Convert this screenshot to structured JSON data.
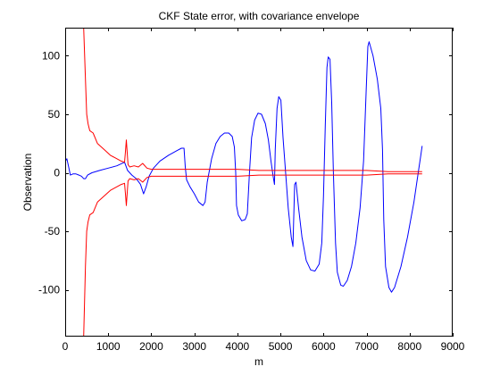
{
  "chart_data": {
    "type": "line",
    "title": "CKF State error, with covariance envelope",
    "xlabel": "m",
    "ylabel": "Observation",
    "xlim": [
      0,
      9000
    ],
    "ylim": [
      -140,
      124
    ],
    "xticks": [
      0,
      1000,
      2000,
      3000,
      4000,
      5000,
      6000,
      7000,
      8000,
      9000
    ],
    "yticks": [
      -100,
      -50,
      0,
      50,
      100
    ],
    "grid": false,
    "series": [
      {
        "color": "#0000ff",
        "points": [
          [
            0,
            10
          ],
          [
            40,
            12
          ],
          [
            80,
            5
          ],
          [
            120,
            -2
          ],
          [
            180,
            -1
          ],
          [
            250,
            -1
          ],
          [
            320,
            -2
          ],
          [
            380,
            -3
          ],
          [
            430,
            -5
          ],
          [
            470,
            -5
          ],
          [
            520,
            -2
          ],
          [
            620,
            0
          ],
          [
            800,
            2
          ],
          [
            1000,
            4
          ],
          [
            1200,
            6
          ],
          [
            1380,
            9
          ],
          [
            1450,
            2
          ],
          [
            1550,
            -2
          ],
          [
            1650,
            -5
          ],
          [
            1750,
            -10
          ],
          [
            1820,
            -18
          ],
          [
            1880,
            -12
          ],
          [
            1950,
            -3
          ],
          [
            2050,
            4
          ],
          [
            2200,
            10
          ],
          [
            2400,
            15
          ],
          [
            2600,
            19
          ],
          [
            2700,
            21
          ],
          [
            2760,
            21
          ],
          [
            2790,
            5
          ],
          [
            2820,
            -6
          ],
          [
            2900,
            -12
          ],
          [
            3000,
            -18
          ],
          [
            3100,
            -25
          ],
          [
            3200,
            -28
          ],
          [
            3250,
            -25
          ],
          [
            3300,
            -8
          ],
          [
            3400,
            12
          ],
          [
            3500,
            25
          ],
          [
            3600,
            31
          ],
          [
            3700,
            34
          ],
          [
            3800,
            34
          ],
          [
            3880,
            31
          ],
          [
            3930,
            22
          ],
          [
            3960,
            0
          ],
          [
            3980,
            -28
          ],
          [
            4020,
            -36
          ],
          [
            4100,
            -41
          ],
          [
            4180,
            -40
          ],
          [
            4230,
            -35
          ],
          [
            4280,
            0
          ],
          [
            4330,
            30
          ],
          [
            4400,
            45
          ],
          [
            4480,
            51
          ],
          [
            4560,
            50
          ],
          [
            4650,
            42
          ],
          [
            4720,
            28
          ],
          [
            4780,
            10
          ],
          [
            4830,
            -3
          ],
          [
            4860,
            -10
          ],
          [
            4880,
            20
          ],
          [
            4920,
            55
          ],
          [
            4960,
            65
          ],
          [
            5010,
            62
          ],
          [
            5060,
            30
          ],
          [
            5120,
            0
          ],
          [
            5180,
            -30
          ],
          [
            5250,
            -55
          ],
          [
            5290,
            -63
          ],
          [
            5330,
            -10
          ],
          [
            5360,
            -8
          ],
          [
            5420,
            -30
          ],
          [
            5500,
            -55
          ],
          [
            5600,
            -75
          ],
          [
            5700,
            -83
          ],
          [
            5800,
            -84
          ],
          [
            5900,
            -78
          ],
          [
            5960,
            -60
          ],
          [
            6000,
            -20
          ],
          [
            6040,
            40
          ],
          [
            6080,
            90
          ],
          [
            6110,
            99
          ],
          [
            6150,
            97
          ],
          [
            6190,
            60
          ],
          [
            6230,
            0
          ],
          [
            6280,
            -60
          ],
          [
            6320,
            -85
          ],
          [
            6400,
            -96
          ],
          [
            6460,
            -97
          ],
          [
            6550,
            -92
          ],
          [
            6650,
            -80
          ],
          [
            6750,
            -60
          ],
          [
            6850,
            -30
          ],
          [
            6930,
            10
          ],
          [
            6990,
            70
          ],
          [
            7030,
            108
          ],
          [
            7060,
            112
          ],
          [
            7150,
            100
          ],
          [
            7250,
            80
          ],
          [
            7330,
            55
          ],
          [
            7370,
            20
          ],
          [
            7400,
            -40
          ],
          [
            7440,
            -80
          ],
          [
            7520,
            -98
          ],
          [
            7580,
            -102
          ],
          [
            7650,
            -98
          ],
          [
            7800,
            -80
          ],
          [
            7950,
            -55
          ],
          [
            8100,
            -25
          ],
          [
            8200,
            0
          ],
          [
            8260,
            15
          ],
          [
            8290,
            23
          ]
        ]
      },
      {
        "color": "#ff0000",
        "points": [
          [
            430,
            124
          ],
          [
            470,
            80
          ],
          [
            500,
            50
          ],
          [
            530,
            42
          ],
          [
            570,
            36
          ],
          [
            650,
            34
          ],
          [
            750,
            25
          ],
          [
            900,
            20
          ],
          [
            1050,
            15
          ],
          [
            1200,
            12
          ],
          [
            1300,
            10
          ],
          [
            1380,
            9
          ],
          [
            1400,
            18
          ],
          [
            1420,
            28
          ],
          [
            1440,
            18
          ],
          [
            1460,
            7
          ],
          [
            1500,
            5
          ],
          [
            1600,
            6
          ],
          [
            1700,
            5
          ],
          [
            1800,
            8
          ],
          [
            1900,
            4
          ],
          [
            2000,
            3
          ],
          [
            2500,
            3
          ],
          [
            3000,
            3
          ],
          [
            3500,
            3
          ],
          [
            4000,
            3
          ],
          [
            4500,
            2
          ],
          [
            5000,
            2
          ],
          [
            5500,
            2
          ],
          [
            6000,
            2
          ],
          [
            6500,
            2
          ],
          [
            7000,
            2
          ],
          [
            7500,
            1
          ],
          [
            8000,
            1
          ],
          [
            8290,
            1
          ]
        ]
      },
      {
        "color": "#ff0000",
        "points": [
          [
            430,
            -140
          ],
          [
            470,
            -80
          ],
          [
            500,
            -50
          ],
          [
            530,
            -42
          ],
          [
            570,
            -36
          ],
          [
            650,
            -34
          ],
          [
            750,
            -25
          ],
          [
            900,
            -20
          ],
          [
            1050,
            -15
          ],
          [
            1200,
            -12
          ],
          [
            1300,
            -10
          ],
          [
            1380,
            -9
          ],
          [
            1400,
            -18
          ],
          [
            1420,
            -28
          ],
          [
            1440,
            -18
          ],
          [
            1460,
            -7
          ],
          [
            1500,
            -5
          ],
          [
            1600,
            -6
          ],
          [
            1700,
            -5
          ],
          [
            1800,
            -8
          ],
          [
            1900,
            -4
          ],
          [
            2000,
            -3
          ],
          [
            2500,
            -3
          ],
          [
            3000,
            -3
          ],
          [
            3500,
            -3
          ],
          [
            4000,
            -3
          ],
          [
            4500,
            -2
          ],
          [
            5000,
            -2
          ],
          [
            5500,
            -2
          ],
          [
            6000,
            -2
          ],
          [
            6500,
            -2
          ],
          [
            7000,
            -2
          ],
          [
            7500,
            -1
          ],
          [
            8000,
            -1
          ],
          [
            8290,
            -1
          ]
        ]
      }
    ]
  }
}
